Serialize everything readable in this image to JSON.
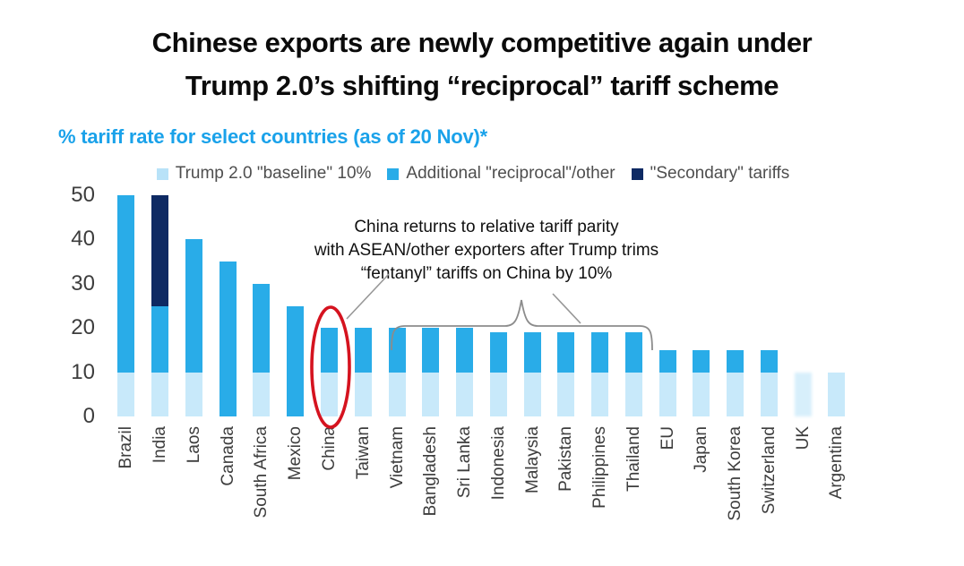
{
  "title": {
    "line1": "Chinese exports are newly competitive again under",
    "line2": "Trump 2.0’s shifting “reciprocal” tariff scheme"
  },
  "subtitle": "% tariff rate for select countries (as of 20 Nov)*",
  "legend": [
    {
      "label": "Trump 2.0 \"baseline\" 10%",
      "color": "#b8e2f8"
    },
    {
      "label": "Additional \"reciprocal\"/other",
      "color": "#29ace8"
    },
    {
      "label": "\"Secondary\" tariffs",
      "color": "#0e2a63"
    }
  ],
  "annotation": {
    "lines": [
      "China returns to relative tariff parity",
      "with ASEAN/other exporters after Trump trims",
      "“fentanyl” tariffs on China by 10%"
    ]
  },
  "colors": {
    "baseline_segment": "#c8e9fa",
    "reciprocal_segment": "#29ace8",
    "secondary_segment": "#0e2a63",
    "subtitle_accent": "#1aa2ea",
    "highlight_ellipse": "#d5131f",
    "leader_lines": "#979797"
  },
  "chart_data": {
    "type": "bar",
    "stacked": true,
    "title": "% tariff rate for select countries (as of 20 Nov)*",
    "xlabel": "",
    "ylabel": "",
    "ylim": [
      0,
      50
    ],
    "yticks": [
      0,
      10,
      20,
      30,
      40,
      50
    ],
    "grid": false,
    "legend_position": "top",
    "categories": [
      "Brazil",
      "India",
      "Laos",
      "Canada",
      "South Africa",
      "Mexico",
      "China",
      "Taiwan",
      "Vietnam",
      "Bangladesh",
      "Sri Lanka",
      "Indonesia",
      "Malaysia",
      "Pakistan",
      "Philippines",
      "Thailand",
      "EU",
      "Japan",
      "South Korea",
      "Switzerland",
      "UK",
      "Argentina"
    ],
    "series": [
      {
        "name": "Trump 2.0 \"baseline\" 10%",
        "color": "#c8e9fa",
        "values": [
          10,
          10,
          10,
          0,
          10,
          0,
          10,
          10,
          10,
          10,
          10,
          10,
          10,
          10,
          10,
          10,
          10,
          10,
          10,
          10,
          10,
          10
        ]
      },
      {
        "name": "Additional \"reciprocal\"/other",
        "color": "#29ace8",
        "values": [
          40,
          15,
          30,
          35,
          20,
          25,
          10,
          10,
          10,
          10,
          10,
          9,
          9,
          9,
          9,
          9,
          5,
          5,
          5,
          5,
          0,
          0
        ]
      },
      {
        "name": "\"Secondary\" tariffs",
        "color": "#0e2a63",
        "values": [
          0,
          25,
          0,
          0,
          0,
          0,
          0,
          0,
          0,
          0,
          0,
          0,
          0,
          0,
          0,
          0,
          0,
          0,
          0,
          0,
          0,
          0
        ]
      }
    ],
    "totals": [
      50,
      50,
      40,
      35,
      30,
      25,
      20,
      20,
      20,
      20,
      20,
      19,
      19,
      19,
      19,
      19,
      15,
      15,
      15,
      15,
      10,
      10
    ],
    "annotations": {
      "circled_category": "China",
      "brace_categories_span": [
        "Vietnam",
        "Thailand"
      ]
    }
  }
}
